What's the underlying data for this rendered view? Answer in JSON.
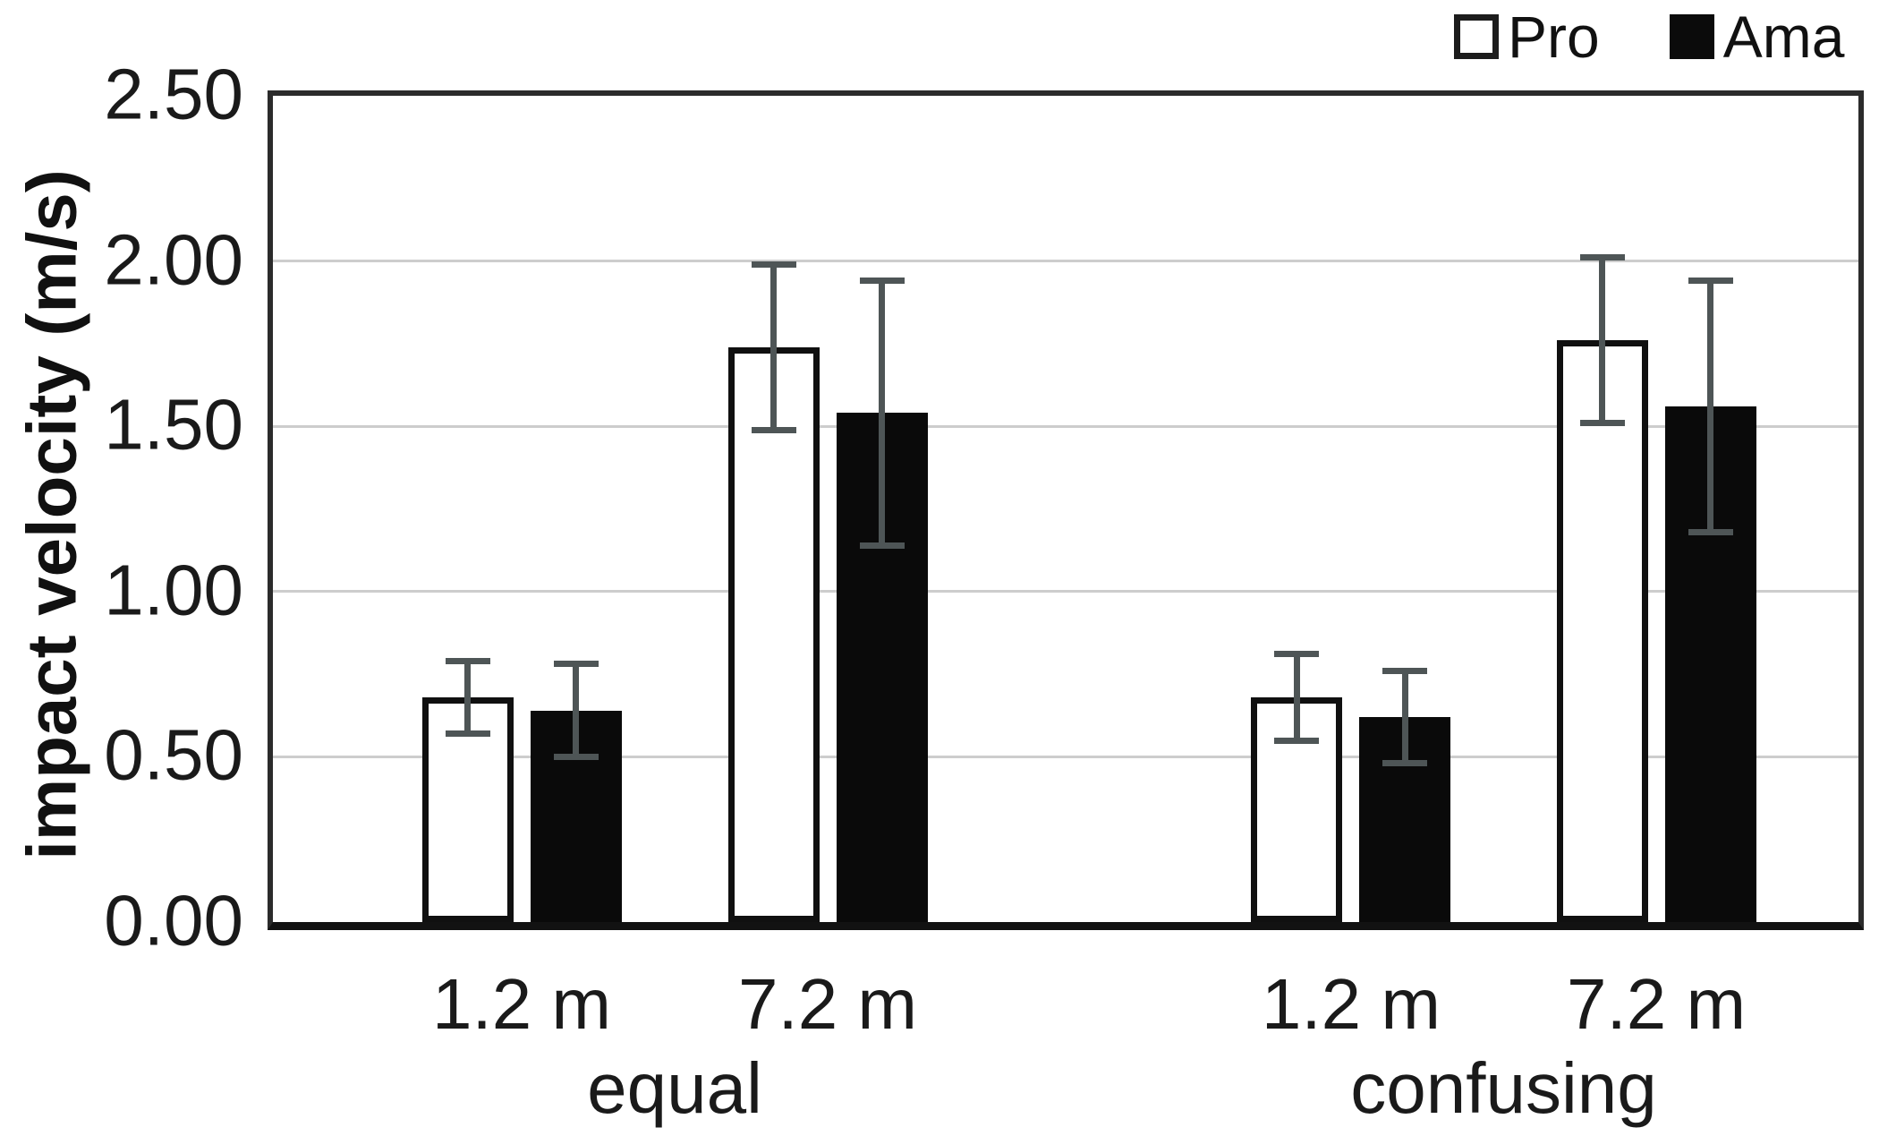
{
  "chart_data": {
    "type": "bar",
    "title": "",
    "ylabel": "impact velocity (m/s)",
    "xlabel": "",
    "ylim": [
      0,
      2.5
    ],
    "y_ticks": [
      0.0,
      0.5,
      1.0,
      1.5,
      2.0,
      2.5
    ],
    "y_tick_labels": [
      "0.00",
      "0.50",
      "1.00",
      "1.50",
      "2.00",
      "2.50"
    ],
    "grid": true,
    "legend_position": "top-right",
    "error_bars": true,
    "groups": [
      {
        "label": "equal",
        "distances": [
          "1.2 m",
          "7.2 m"
        ]
      },
      {
        "label": "confusing",
        "distances": [
          "1.2 m",
          "7.2 m"
        ]
      }
    ],
    "categories": [
      "equal 1.2 m",
      "equal 7.2 m",
      "confusing 1.2 m",
      "confusing 7.2 m"
    ],
    "series": [
      {
        "name": "Pro",
        "fill": "#ffffff",
        "outline": "#101010",
        "values": [
          0.68,
          1.74,
          0.68,
          1.76
        ],
        "errors": [
          0.12,
          0.26,
          0.14,
          0.26
        ]
      },
      {
        "name": "Ama",
        "fill": "#0a0a0a",
        "outline": "#0a0a0a",
        "values": [
          0.64,
          1.54,
          0.62,
          1.56
        ],
        "errors": [
          0.15,
          0.41,
          0.15,
          0.39
        ]
      }
    ],
    "colors": {
      "error_bar": "#4e5556",
      "gridline": "#cdcdcd",
      "frame": "#2b2b2b",
      "axis": "#121212",
      "text": "#1a1a1a"
    }
  }
}
